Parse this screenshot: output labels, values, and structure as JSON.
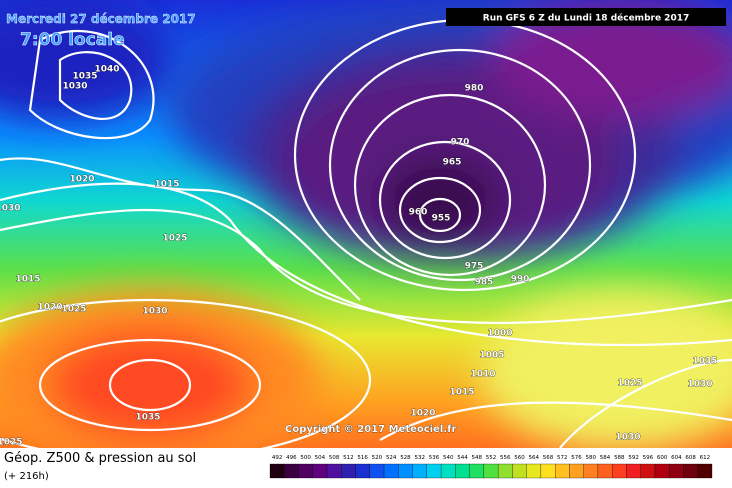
{
  "header": {
    "date": "Mercredi 27 décembre 2017",
    "time": "7:00 locale",
    "run": "Run GFS 6 Z du Lundi 18 décembre 2017"
  },
  "isobars": [
    "1040",
    "1035",
    "1030",
    "1020",
    "1015",
    "1030",
    "1025",
    "1015",
    "1020",
    "1025",
    "1030",
    "1035",
    "1025",
    "980",
    "970",
    "965",
    "960",
    "955",
    "975",
    "985",
    "990",
    "1000",
    "1005",
    "1010",
    "1015",
    "1020",
    "1025",
    "1035",
    "1030",
    "1030"
  ],
  "copyright": "Copyright © 2017 Meteociel.fr",
  "legend": {
    "title": "Géop. Z500 & pression au sol",
    "lead": "(+ 216h)",
    "ticks": [
      492,
      496,
      500,
      504,
      508,
      512,
      516,
      520,
      524,
      528,
      532,
      536,
      540,
      544,
      548,
      552,
      556,
      560,
      564,
      568,
      572,
      576,
      580,
      584,
      588,
      592,
      596,
      600,
      604,
      608,
      612
    ]
  }
}
